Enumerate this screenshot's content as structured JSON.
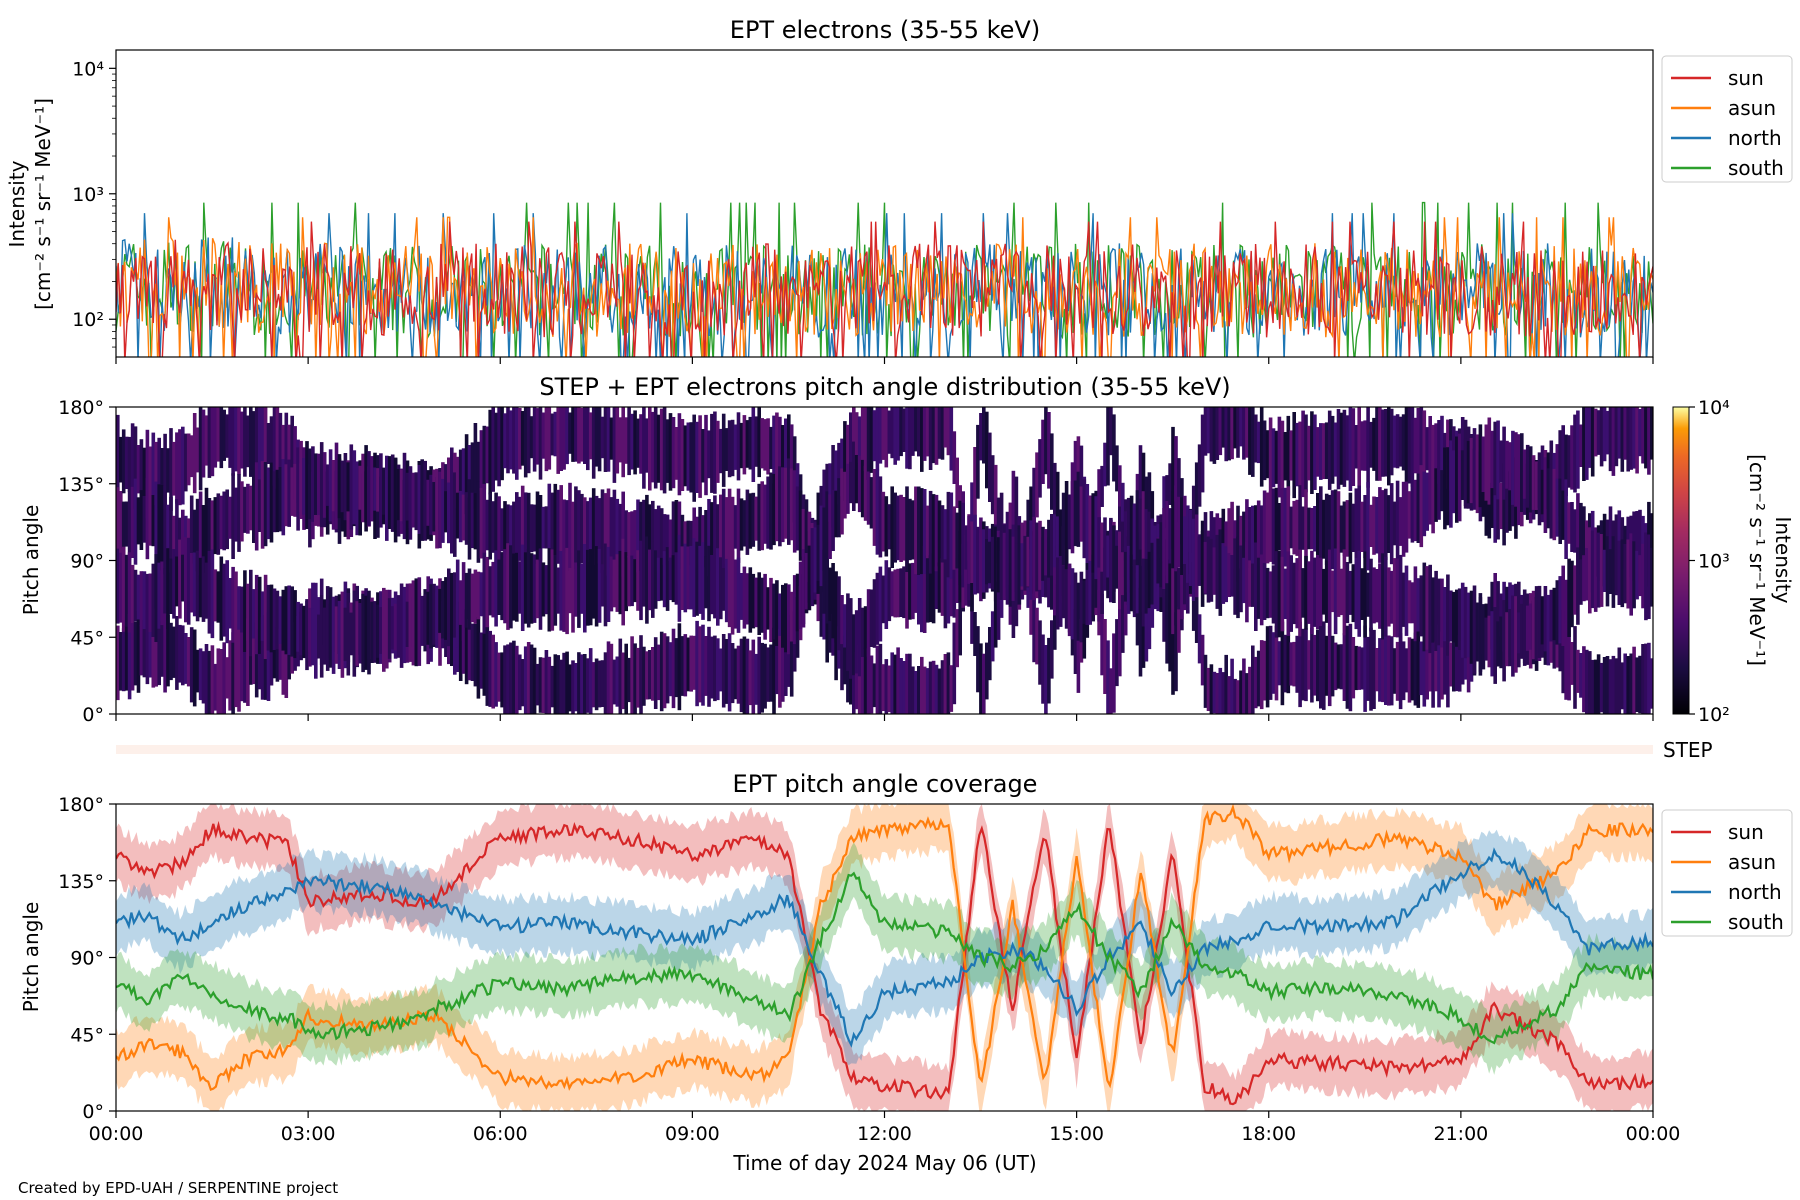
{
  "footer": "Created by EPD-UAH / SERPENTINE project",
  "xlabel": "Time of day 2024 May 06 (UT)",
  "xticks": [
    "00:00",
    "03:00",
    "06:00",
    "09:00",
    "12:00",
    "15:00",
    "18:00",
    "21:00",
    "00:00"
  ],
  "colors": {
    "sun": "#d62728",
    "asun": "#ff7f0e",
    "north": "#1f77b4",
    "south": "#2ca02c"
  },
  "chart_data": [
    {
      "type": "line",
      "title": "EPT electrons (35-55 keV)",
      "ylabel": "Intensity",
      "yunits": "[cm⁻² s⁻¹ sr⁻¹ MeV⁻¹]",
      "yscale": "log",
      "ylim": [
        50,
        14000
      ],
      "yticks": [
        "10²",
        "10³",
        "10⁴"
      ],
      "x_range_hours": [
        0,
        24
      ],
      "legend": [
        "sun",
        "asun",
        "north",
        "south"
      ],
      "legend_position": "outside-right",
      "series": [
        {
          "name": "sun",
          "typical_range": [
            60,
            600
          ]
        },
        {
          "name": "asun",
          "typical_range": [
            60,
            650
          ]
        },
        {
          "name": "north",
          "typical_range": [
            60,
            700
          ]
        },
        {
          "name": "south",
          "typical_range": [
            60,
            850
          ]
        }
      ]
    },
    {
      "type": "heatmap",
      "title": "STEP + EPT electrons pitch angle distribution (35-55 keV)",
      "ylabel": "Pitch angle",
      "yticks": [
        "0°",
        "45°",
        "90°",
        "135°",
        "180°"
      ],
      "ylim": [
        0,
        180
      ],
      "colorbar": {
        "label": "Intensity",
        "units": "[cm⁻² s⁻¹ sr⁻¹ MeV⁻¹]",
        "scale": "log",
        "range": [
          100,
          10000
        ],
        "ticks": [
          "10²",
          "10³",
          "10⁴"
        ],
        "colormap": "inferno"
      },
      "step_label": "STEP"
    },
    {
      "type": "line",
      "title": "EPT pitch angle coverage",
      "ylabel": "Pitch angle",
      "yticks": [
        "0°",
        "45°",
        "90°",
        "135°",
        "180°"
      ],
      "ylim": [
        0,
        180
      ],
      "legend": [
        "sun",
        "asun",
        "north",
        "south"
      ],
      "legend_position": "outside-right",
      "series": [
        {
          "name": "sun",
          "x": [
            0,
            0.5,
            1,
            1.5,
            2,
            2.5,
            2.7,
            3,
            4,
            4.8,
            5,
            6,
            7,
            8,
            9,
            10,
            10.5,
            11,
            11.5,
            12,
            13,
            13.5,
            14,
            14.5,
            15,
            15.5,
            16,
            16.5,
            17,
            17.5,
            18,
            19,
            20,
            21,
            21.5,
            22,
            22.5,
            23,
            24
          ],
          "y": [
            150,
            140,
            145,
            165,
            160,
            158,
            155,
            122,
            128,
            122,
            125,
            160,
            165,
            160,
            150,
            160,
            150,
            60,
            20,
            15,
            10,
            170,
            60,
            165,
            30,
            170,
            40,
            150,
            15,
            5,
            30,
            28,
            25,
            30,
            60,
            50,
            40,
            15,
            18
          ]
        },
        {
          "name": "asun",
          "x": [
            0,
            0.5,
            1,
            1.5,
            2,
            2.5,
            2.7,
            3,
            4,
            4.8,
            5,
            6,
            7,
            8,
            9,
            10,
            10.5,
            11,
            11.5,
            12,
            13,
            13.5,
            14,
            14.5,
            15,
            15.5,
            16,
            16.5,
            17,
            17.5,
            18,
            19,
            20,
            21,
            21.5,
            22,
            22.5,
            23,
            24
          ],
          "y": [
            30,
            40,
            35,
            15,
            30,
            35,
            35,
            55,
            50,
            55,
            55,
            20,
            15,
            20,
            30,
            20,
            30,
            120,
            160,
            165,
            170,
            10,
            120,
            15,
            150,
            10,
            140,
            30,
            170,
            175,
            150,
            155,
            160,
            150,
            120,
            130,
            140,
            165,
            165
          ]
        },
        {
          "name": "north",
          "x": [
            0,
            0.5,
            1,
            1.5,
            2,
            2.5,
            2.7,
            3,
            4,
            4.8,
            5,
            6,
            7,
            8,
            9,
            10,
            10.5,
            11,
            11.5,
            12,
            13,
            13.5,
            14,
            14.5,
            15,
            15.5,
            16,
            16.5,
            17,
            17.5,
            18,
            19,
            20,
            21,
            21.5,
            22,
            22.5,
            23,
            24
          ],
          "y": [
            110,
            115,
            100,
            110,
            120,
            125,
            130,
            135,
            132,
            125,
            120,
            108,
            110,
            105,
            100,
            115,
            125,
            80,
            40,
            70,
            75,
            90,
            95,
            85,
            60,
            90,
            110,
            70,
            95,
            100,
            110,
            108,
            112,
            140,
            150,
            140,
            120,
            95,
            100
          ]
        },
        {
          "name": "south",
          "x": [
            0,
            0.5,
            1,
            1.5,
            2,
            2.5,
            2.7,
            3,
            4,
            4.8,
            5,
            6,
            7,
            8,
            9,
            10,
            10.5,
            11,
            11.5,
            12,
            13,
            13.5,
            14,
            14.5,
            15,
            15.5,
            16,
            16.5,
            17,
            17.5,
            18,
            19,
            20,
            21,
            21.5,
            22,
            22.5,
            23,
            24
          ],
          "y": [
            75,
            65,
            80,
            70,
            60,
            55,
            55,
            45,
            48,
            55,
            60,
            75,
            72,
            78,
            80,
            65,
            55,
            100,
            140,
            110,
            105,
            90,
            85,
            95,
            120,
            90,
            70,
            110,
            85,
            80,
            70,
            72,
            68,
            55,
            40,
            50,
            60,
            85,
            80
          ]
        }
      ]
    }
  ]
}
